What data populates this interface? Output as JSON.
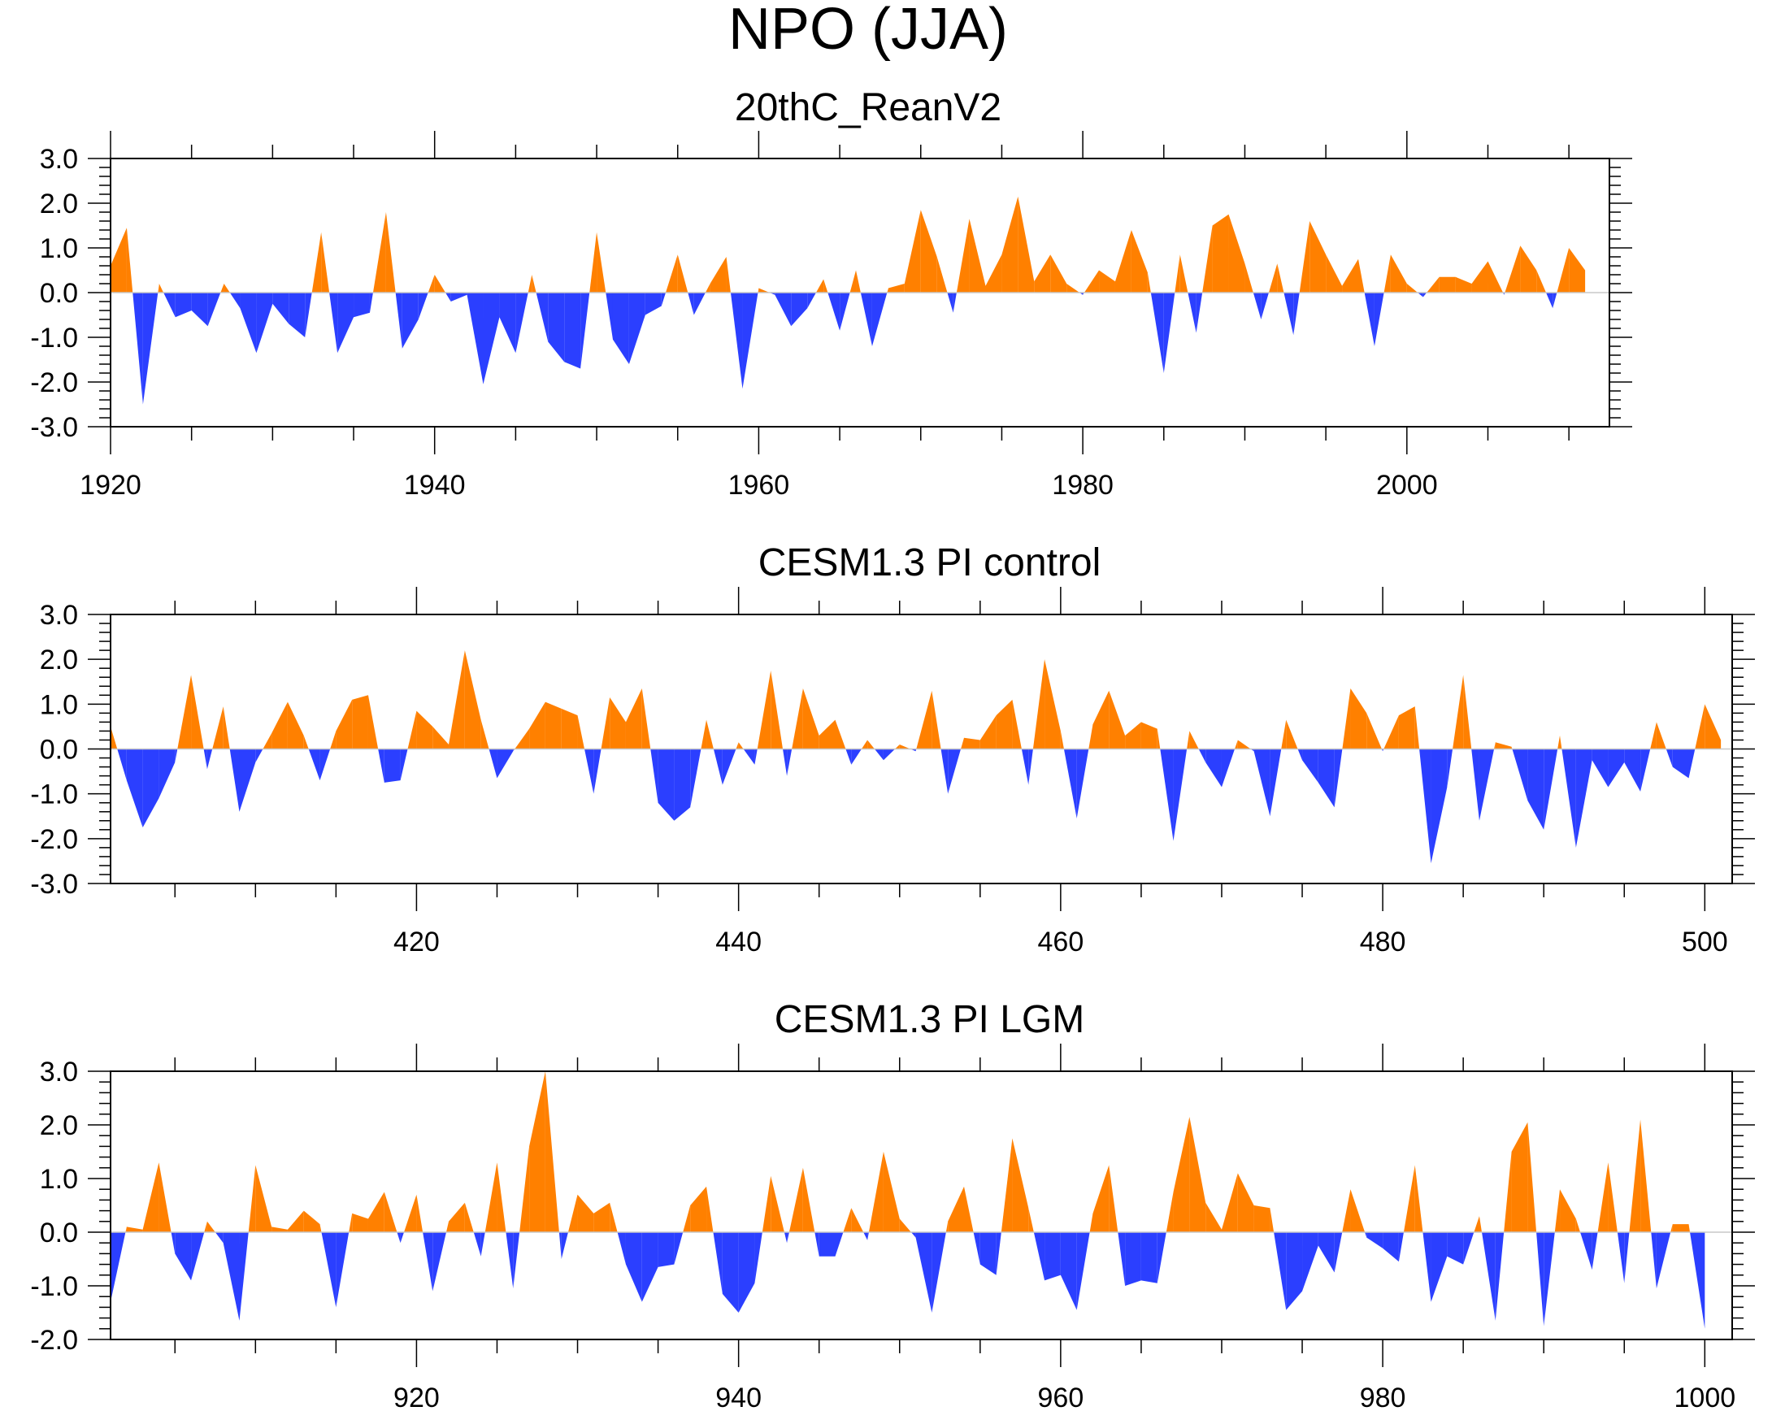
{
  "figure": {
    "title": "NPO (JJA)"
  },
  "colors": {
    "positive": "#ff8000",
    "negative": "#2b3fff",
    "axis": "#000000"
  },
  "chart_data": [
    {
      "type": "area",
      "title": "20thC_ReanV2",
      "x_start": 1920,
      "xlim": [
        1920,
        2012.5
      ],
      "xticks": [
        1920,
        1940,
        1960,
        1980,
        2000
      ],
      "xtick_labels": [
        "1920",
        "1940",
        "1960",
        "1980",
        "2000"
      ],
      "ylim": [
        -3.0,
        3.0
      ],
      "yticks": [
        -3.0,
        -2.0,
        -1.0,
        0.0,
        1.0,
        2.0,
        3.0
      ],
      "ytick_labels": [
        "-3.0",
        "-2.0",
        "-1.0",
        "0.0",
        "1.0",
        "2.0",
        "3.0"
      ],
      "values": [
        0.6,
        1.45,
        -2.5,
        0.2,
        -0.55,
        -0.4,
        -0.75,
        0.2,
        -0.35,
        -1.35,
        -0.25,
        -0.7,
        -1.0,
        1.35,
        -1.35,
        -0.55,
        -0.45,
        1.8,
        -1.25,
        -0.6,
        0.4,
        -0.2,
        -0.05,
        -2.05,
        -0.55,
        -1.35,
        0.4,
        -1.1,
        -1.55,
        -1.7,
        1.35,
        -1.05,
        -1.6,
        -0.5,
        -0.3,
        0.85,
        -0.5,
        0.2,
        0.8,
        -2.15,
        0.1,
        -0.05,
        -0.75,
        -0.35,
        0.3,
        -0.85,
        0.5,
        -1.2,
        0.1,
        0.2,
        1.85,
        0.8,
        -0.45,
        1.65,
        0.15,
        0.85,
        2.15,
        0.25,
        0.85,
        0.2,
        -0.05,
        0.5,
        0.25,
        1.4,
        0.45,
        -1.8,
        0.85,
        -0.9,
        1.5,
        1.75,
        0.65,
        -0.6,
        0.65,
        -0.95,
        1.6,
        0.85,
        0.15,
        0.75,
        -1.2,
        0.85,
        0.2,
        -0.1,
        0.35,
        0.35,
        0.2,
        0.7,
        -0.05,
        1.05,
        0.5,
        -0.35,
        1.0,
        0.5
      ]
    },
    {
      "type": "area",
      "title": "CESM1.3 PI control",
      "x_start": 401,
      "xlim": [
        401,
        501.7
      ],
      "xticks": [
        420,
        440,
        460,
        480,
        500
      ],
      "xtick_labels": [
        "420",
        "440",
        "460",
        "480",
        "500"
      ],
      "ylim": [
        -3.0,
        3.0
      ],
      "yticks": [
        -3.0,
        -2.0,
        -1.0,
        0.0,
        1.0,
        2.0,
        3.0
      ],
      "ytick_labels": [
        "-3.0",
        "-2.0",
        "-1.0",
        "0.0",
        "1.0",
        "2.0",
        "3.0"
      ],
      "values": [
        0.5,
        -0.7,
        -1.75,
        -1.1,
        -0.3,
        1.65,
        -0.45,
        0.95,
        -1.4,
        -0.3,
        0.35,
        1.05,
        0.3,
        -0.7,
        0.4,
        1.1,
        1.2,
        -0.75,
        -0.7,
        0.85,
        0.5,
        0.1,
        2.2,
        0.65,
        -0.65,
        -0.05,
        0.45,
        1.05,
        0.9,
        0.75,
        -1.0,
        1.15,
        0.6,
        1.35,
        -1.2,
        -1.6,
        -1.3,
        0.65,
        -0.8,
        0.15,
        -0.35,
        1.75,
        -0.6,
        1.35,
        0.3,
        0.65,
        -0.35,
        0.2,
        -0.25,
        0.1,
        -0.05,
        1.3,
        -1.0,
        0.25,
        0.2,
        0.75,
        1.1,
        -0.8,
        2.0,
        0.4,
        -1.55,
        0.55,
        1.3,
        0.3,
        0.6,
        0.45,
        -2.05,
        0.4,
        -0.3,
        -0.85,
        0.2,
        -0.05,
        -1.5,
        0.65,
        -0.25,
        -0.75,
        -1.3,
        1.35,
        0.8,
        -0.05,
        0.75,
        0.95,
        -2.55,
        -0.85,
        1.65,
        -1.6,
        0.15,
        0.05,
        -1.15,
        -1.8,
        0.3,
        -2.2,
        -0.25,
        -0.85,
        -0.3,
        -0.95,
        0.6,
        -0.4,
        -0.65,
        1.0,
        0.2
      ]
    },
    {
      "type": "area",
      "title": "CESM1.3 PI LGM",
      "x_start": 901,
      "xlim": [
        901,
        1001.7
      ],
      "xticks": [
        920,
        940,
        960,
        980,
        1000
      ],
      "xtick_labels": [
        "920",
        "940",
        "960",
        "980",
        "1000"
      ],
      "ylim": [
        -2.0,
        3.0
      ],
      "yticks": [
        -2.0,
        -1.0,
        0.0,
        1.0,
        2.0,
        3.0
      ],
      "ytick_labels": [
        "-2.0",
        "-1.0",
        "0.0",
        "1.0",
        "2.0",
        "3.0"
      ],
      "values": [
        -1.3,
        0.1,
        0.05,
        1.3,
        -0.4,
        -0.9,
        0.2,
        -0.2,
        -1.65,
        1.25,
        0.1,
        0.05,
        0.4,
        0.15,
        -1.4,
        0.35,
        0.25,
        0.75,
        -0.2,
        0.7,
        -1.1,
        0.2,
        0.55,
        -0.45,
        1.3,
        -1.05,
        1.6,
        3.0,
        -0.5,
        0.7,
        0.35,
        0.55,
        -0.6,
        -1.3,
        -0.65,
        -0.6,
        0.5,
        0.85,
        -1.15,
        -1.5,
        -0.95,
        1.05,
        -0.2,
        1.2,
        -0.45,
        -0.45,
        0.45,
        -0.15,
        1.5,
        0.25,
        -0.1,
        -1.5,
        0.2,
        0.85,
        -0.6,
        -0.8,
        1.75,
        0.45,
        -0.9,
        -0.8,
        -1.45,
        0.35,
        1.25,
        -1.0,
        -0.9,
        -0.95,
        0.75,
        2.15,
        0.55,
        0.05,
        1.1,
        0.5,
        0.45,
        -1.45,
        -1.1,
        -0.25,
        -0.75,
        0.8,
        -0.1,
        -0.3,
        -0.55,
        1.25,
        -1.3,
        -0.45,
        -0.6,
        0.3,
        -1.65,
        1.5,
        2.05,
        -1.75,
        0.8,
        0.25,
        -0.7,
        1.3,
        -0.95,
        2.1,
        -1.05,
        0.15,
        0.15,
        -1.8
      ]
    }
  ]
}
